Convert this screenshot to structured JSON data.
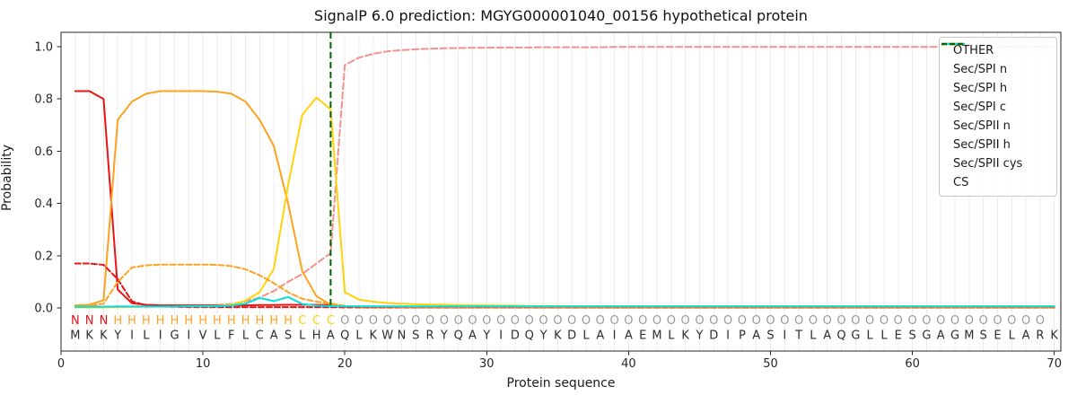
{
  "chart_data": {
    "type": "line",
    "title": "SignalP 6.0 prediction: MGYG000001040_00156 hypothetical protein",
    "xlabel": "Protein sequence",
    "ylabel": "Probability",
    "x_ticks": [
      0,
      10,
      20,
      30,
      40,
      50,
      60,
      70
    ],
    "y_ticks": [
      "0.0",
      "0.2",
      "0.4",
      "0.6",
      "0.8",
      "1.0"
    ],
    "xlim": [
      0,
      70.5
    ],
    "ylim": [
      -0.165,
      1.055
    ],
    "grid": "vertical-per-residue",
    "legend_position": "upper right",
    "series": [
      {
        "name": "OTHER",
        "color": "#f4908d",
        "dash": [
          7,
          3.5
        ],
        "width": 2,
        "values": [
          0.005,
          0.005,
          0.005,
          0.006,
          0.006,
          0.006,
          0.007,
          0.007,
          0.008,
          0.009,
          0.011,
          0.015,
          0.025,
          0.04,
          0.065,
          0.1,
          0.13,
          0.17,
          0.21,
          0.93,
          0.958,
          0.973,
          0.982,
          0.987,
          0.99,
          0.992,
          0.994,
          0.995,
          0.996,
          0.996,
          0.997,
          0.997,
          0.997,
          0.998,
          0.998,
          0.998,
          0.998,
          0.998,
          0.999,
          0.999,
          0.999,
          0.999,
          0.999,
          0.999,
          0.999,
          0.999,
          0.999,
          0.999,
          0.999,
          0.999,
          0.999,
          0.999,
          0.999,
          0.999,
          0.999,
          0.999,
          0.999,
          0.999,
          0.999,
          0.999,
          0.999,
          0.999,
          0.999,
          0.999,
          0.999,
          0.999,
          0.999,
          0.999,
          0.999,
          0.999
        ]
      },
      {
        "name": "Sec/SPI n",
        "color": "#ec1313",
        "dash": null,
        "width": 2,
        "values": [
          0.83,
          0.83,
          0.8,
          0.07,
          0.018,
          0.012,
          0.01,
          0.01,
          0.01,
          0.01,
          0.01,
          0.01,
          0.01,
          0.011,
          0.011,
          0.012,
          0.012,
          0.012,
          0.011,
          0.004,
          0.003,
          0.002,
          0.002,
          0.002,
          0.002,
          0.002,
          0.002,
          0.002,
          0.002,
          0.002,
          0.002,
          0.002,
          0.002,
          0.002,
          0.002,
          0.002,
          0.002,
          0.002,
          0.002,
          0.002,
          0.002,
          0.002,
          0.002,
          0.002,
          0.002,
          0.002,
          0.002,
          0.002,
          0.002,
          0.002,
          0.002,
          0.002,
          0.002,
          0.002,
          0.002,
          0.002,
          0.002,
          0.002,
          0.002,
          0.002,
          0.002,
          0.002,
          0.002,
          0.002,
          0.002,
          0.002,
          0.002,
          0.002,
          0.002,
          0.002
        ]
      },
      {
        "name": "Sec/SPI h",
        "color": "#ffa21f",
        "dash": null,
        "width": 2,
        "values": [
          0.01,
          0.012,
          0.03,
          0.72,
          0.79,
          0.82,
          0.83,
          0.83,
          0.83,
          0.83,
          0.828,
          0.82,
          0.79,
          0.72,
          0.62,
          0.4,
          0.14,
          0.045,
          0.012,
          0.004,
          0.003,
          0.002,
          0.002,
          0.002,
          0.002,
          0.002,
          0.002,
          0.002,
          0.002,
          0.002,
          0.002,
          0.002,
          0.002,
          0.002,
          0.002,
          0.002,
          0.002,
          0.002,
          0.002,
          0.002,
          0.002,
          0.002,
          0.002,
          0.002,
          0.002,
          0.002,
          0.002,
          0.002,
          0.002,
          0.002,
          0.002,
          0.002,
          0.002,
          0.002,
          0.002,
          0.002,
          0.002,
          0.002,
          0.002,
          0.002,
          0.002,
          0.002,
          0.002,
          0.002,
          0.002,
          0.002,
          0.002,
          0.002,
          0.002,
          0.002
        ]
      },
      {
        "name": "Sec/SPI c",
        "color": "#ffd20a",
        "dash": null,
        "width": 2,
        "values": [
          0.002,
          0.002,
          0.002,
          0.003,
          0.004,
          0.004,
          0.005,
          0.005,
          0.006,
          0.007,
          0.008,
          0.012,
          0.028,
          0.06,
          0.15,
          0.47,
          0.74,
          0.805,
          0.76,
          0.06,
          0.032,
          0.024,
          0.019,
          0.016,
          0.014,
          0.013,
          0.012,
          0.011,
          0.01,
          0.01,
          0.009,
          0.009,
          0.008,
          0.008,
          0.008,
          0.007,
          0.007,
          0.007,
          0.007,
          0.007,
          0.007,
          0.007,
          0.007,
          0.007,
          0.007,
          0.007,
          0.007,
          0.007,
          0.007,
          0.007,
          0.007,
          0.007,
          0.007,
          0.007,
          0.007,
          0.007,
          0.007,
          0.007,
          0.007,
          0.007,
          0.007,
          0.007,
          0.007,
          0.007,
          0.007,
          0.007,
          0.007,
          0.007,
          0.007,
          0.007
        ]
      },
      {
        "name": "Sec/SPII n",
        "color": "#ec1313",
        "dash": [
          6,
          3
        ],
        "width": 2,
        "values": [
          0.17,
          0.17,
          0.165,
          0.11,
          0.025,
          0.01,
          0.005,
          0.004,
          0.003,
          0.003,
          0.003,
          0.003,
          0.003,
          0.003,
          0.003,
          0.003,
          0.003,
          0.003,
          0.003,
          0.002,
          0.002,
          0.002,
          0.002,
          0.002,
          0.002,
          0.002,
          0.002,
          0.002,
          0.002,
          0.002,
          0.002,
          0.002,
          0.002,
          0.002,
          0.002,
          0.002,
          0.002,
          0.002,
          0.002,
          0.002,
          0.002,
          0.002,
          0.002,
          0.002,
          0.002,
          0.002,
          0.002,
          0.002,
          0.002,
          0.002,
          0.002,
          0.002,
          0.002,
          0.002,
          0.002,
          0.002,
          0.002,
          0.002,
          0.002,
          0.002,
          0.002,
          0.002,
          0.002,
          0.002,
          0.002,
          0.002,
          0.002,
          0.002,
          0.002,
          0.002
        ]
      },
      {
        "name": "Sec/SPII h",
        "color": "#ffa21f",
        "dash": [
          6,
          3
        ],
        "width": 2,
        "values": [
          0.006,
          0.008,
          0.016,
          0.1,
          0.155,
          0.163,
          0.166,
          0.166,
          0.166,
          0.166,
          0.165,
          0.16,
          0.148,
          0.125,
          0.095,
          0.06,
          0.035,
          0.024,
          0.017,
          0.008,
          0.006,
          0.005,
          0.005,
          0.004,
          0.004,
          0.004,
          0.004,
          0.004,
          0.004,
          0.004,
          0.004,
          0.004,
          0.004,
          0.004,
          0.004,
          0.004,
          0.004,
          0.004,
          0.004,
          0.004,
          0.004,
          0.004,
          0.004,
          0.004,
          0.004,
          0.004,
          0.004,
          0.004,
          0.004,
          0.004,
          0.004,
          0.004,
          0.004,
          0.004,
          0.004,
          0.004,
          0.004,
          0.004,
          0.004,
          0.004,
          0.004,
          0.004,
          0.004,
          0.004,
          0.004,
          0.004,
          0.004,
          0.004,
          0.004,
          0.004
        ]
      },
      {
        "name": "Sec/SPII cys",
        "color": "#00e0e0",
        "dash": null,
        "width": 2,
        "values": [
          0.004,
          0.004,
          0.004,
          0.005,
          0.005,
          0.005,
          0.005,
          0.005,
          0.006,
          0.006,
          0.007,
          0.009,
          0.016,
          0.038,
          0.026,
          0.042,
          0.015,
          0.009,
          0.007,
          0.006,
          0.006,
          0.006,
          0.006,
          0.006,
          0.006,
          0.006,
          0.006,
          0.006,
          0.006,
          0.006,
          0.006,
          0.006,
          0.006,
          0.006,
          0.006,
          0.006,
          0.006,
          0.006,
          0.006,
          0.006,
          0.006,
          0.006,
          0.006,
          0.006,
          0.006,
          0.006,
          0.006,
          0.006,
          0.006,
          0.006,
          0.006,
          0.006,
          0.006,
          0.006,
          0.006,
          0.006,
          0.006,
          0.006,
          0.006,
          0.006,
          0.006,
          0.006,
          0.006,
          0.006,
          0.006,
          0.006,
          0.006,
          0.006,
          0.006,
          0.006
        ]
      }
    ],
    "cs_line": {
      "name": "CS",
      "position": 19,
      "color": "#006400",
      "dash": [
        7,
        4
      ],
      "width": 2
    },
    "sequence": "MKKYILIGIVLFLCASLHAQLKWNSRYQAYIDQYKDLAIAEMLKYDIPASITLAQGLLESGAGMSELARK",
    "annotation": "NNNHHHHHHHHHHHHHCCCOOOOOOOOOOOOOOOOOOOOOOOOOOOOOOOOOOOOOOOOOOOOOOOOOO",
    "annotation_colors": {
      "N": "#ec1313",
      "H": "#ffa21f",
      "C": "#ffd20a",
      "O": "#9a9a9a"
    },
    "sequence_color": "#2e2e2e"
  },
  "style": {
    "grid_color": "#ececec",
    "spine_color": "#262626",
    "tick_label_color": "#262626"
  }
}
